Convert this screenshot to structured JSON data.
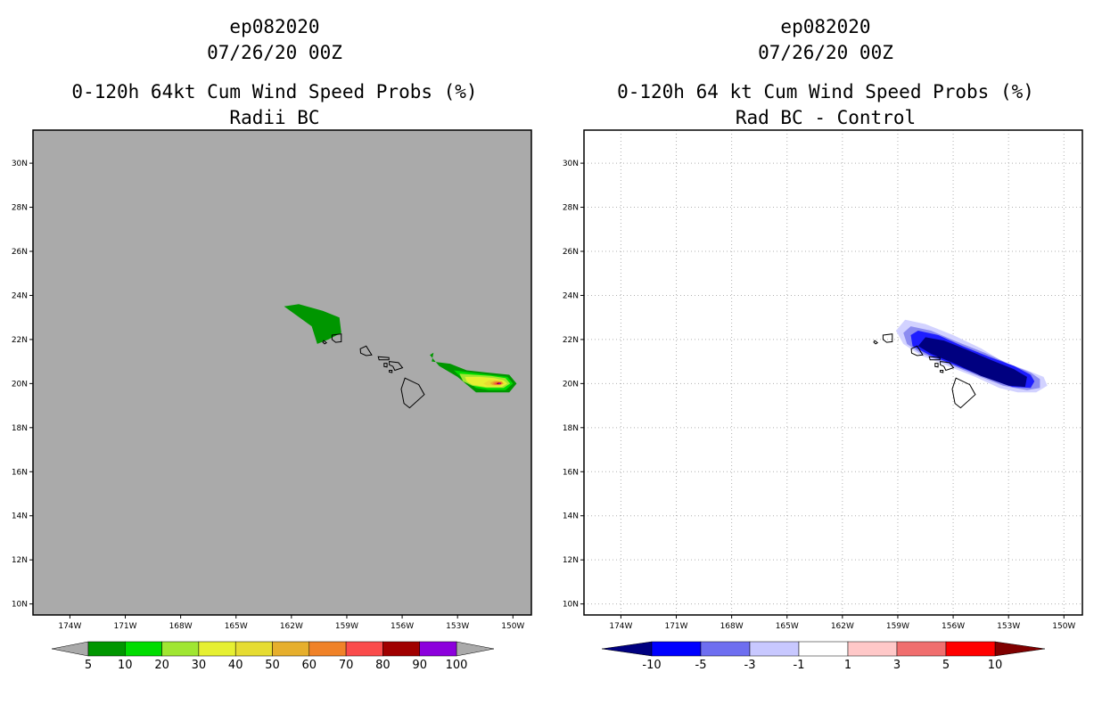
{
  "chart_data": [
    {
      "type": "heatmap",
      "storm_id": "ep082020",
      "datetime": "07/26/20 00Z",
      "title": "0-120h 64kt Cum Wind Speed Probs (%)",
      "subtitle": "Radii BC",
      "xlabel": "",
      "ylabel": "",
      "xlim": [
        -176,
        -149
      ],
      "ylim": [
        9.5,
        31.5
      ],
      "grid": false,
      "background_color": "#aaaaaa",
      "x_ticks": [
        -174,
        -171,
        -168,
        -165,
        -162,
        -159,
        -156,
        -153,
        -150
      ],
      "x_tick_labels": [
        "174W",
        "171W",
        "168W",
        "165W",
        "162W",
        "159W",
        "156W",
        "153W",
        "150W"
      ],
      "y_ticks": [
        10,
        12,
        14,
        16,
        18,
        20,
        22,
        24,
        26,
        28,
        30
      ],
      "y_tick_labels": [
        "10N",
        "12N",
        "14N",
        "16N",
        "18N",
        "20N",
        "22N",
        "24N",
        "26N",
        "28N",
        "30N"
      ],
      "colorbar": {
        "labels": [
          "5",
          "10",
          "20",
          "30",
          "40",
          "50",
          "60",
          "70",
          "80",
          "90",
          "100"
        ],
        "colors": [
          "#009600",
          "#00dc00",
          "#a0e632",
          "#e6f032",
          "#e6dc32",
          "#e6af2d",
          "#f08228",
          "#fa4b4b",
          "#a00000",
          "#8c00dc"
        ],
        "arrow_color": "#aaaaaa"
      },
      "contours": [
        {
          "level": 5,
          "color": "#009600",
          "regions": [
            [
              [
                -162.4,
                23.5
              ],
              [
                -161.6,
                23.6
              ],
              [
                -160.3,
                23.3
              ],
              [
                -159.4,
                23.0
              ],
              [
                -159.3,
                22.3
              ],
              [
                -160.0,
                22.0
              ],
              [
                -160.6,
                21.8
              ],
              [
                -160.9,
                22.6
              ]
            ],
            [
              [
                -154.4,
                21.0
              ],
              [
                -153.4,
                20.9
              ],
              [
                -152.5,
                20.6
              ],
              [
                -151.4,
                20.5
              ],
              [
                -150.2,
                20.4
              ],
              [
                -149.8,
                20.0
              ],
              [
                -150.2,
                19.6
              ],
              [
                -151.2,
                19.6
              ],
              [
                -152.0,
                19.6
              ],
              [
                -153.0,
                20.3
              ],
              [
                -154.0,
                20.8
              ],
              [
                -154.5,
                21.3
              ],
              [
                -154.3,
                21.4
              ]
            ]
          ]
        },
        {
          "level": 10,
          "color": "#00dc00",
          "regions": [
            [
              [
                -153.2,
                20.6
              ],
              [
                -152.3,
                20.5
              ],
              [
                -151.3,
                20.4
              ],
              [
                -150.3,
                20.3
              ],
              [
                -150.0,
                20.0
              ],
              [
                -150.4,
                19.7
              ],
              [
                -151.3,
                19.7
              ],
              [
                -152.0,
                19.8
              ],
              [
                -152.7,
                20.2
              ]
            ]
          ]
        },
        {
          "level": 20,
          "color": "#a0e632",
          "regions": [
            [
              [
                -152.9,
                20.45
              ],
              [
                -152.1,
                20.4
              ],
              [
                -151.2,
                20.35
              ],
              [
                -150.4,
                20.25
              ],
              [
                -150.15,
                20.0
              ],
              [
                -150.5,
                19.8
              ],
              [
                -151.4,
                19.8
              ],
              [
                -152.2,
                19.9
              ],
              [
                -152.7,
                20.1
              ]
            ]
          ]
        },
        {
          "level": 30,
          "color": "#e6f032",
          "regions": [
            [
              [
                -152.6,
                20.3
              ],
              [
                -151.8,
                20.3
              ],
              [
                -151.0,
                20.25
              ],
              [
                -150.5,
                20.15
              ],
              [
                -150.3,
                20.0
              ],
              [
                -150.6,
                19.85
              ],
              [
                -151.5,
                19.85
              ],
              [
                -152.2,
                19.95
              ],
              [
                -152.5,
                20.1
              ]
            ]
          ]
        },
        {
          "level": 40,
          "color": "#e6dc32",
          "regions": [
            [
              [
                -151.3,
                20.15
              ],
              [
                -150.7,
                20.15
              ],
              [
                -150.45,
                20.0
              ],
              [
                -150.7,
                19.9
              ],
              [
                -151.4,
                19.9
              ],
              [
                -151.6,
                20.0
              ]
            ]
          ]
        },
        {
          "level": 50,
          "color": "#e6af2d",
          "regions": [
            [
              [
                -151.0,
                20.12
              ],
              [
                -150.6,
                20.1
              ],
              [
                -150.5,
                20.0
              ],
              [
                -150.7,
                19.93
              ],
              [
                -151.1,
                19.93
              ],
              [
                -151.25,
                20.02
              ]
            ]
          ]
        },
        {
          "level": 60,
          "color": "#f08228",
          "regions": [
            [
              [
                -150.9,
                20.08
              ],
              [
                -150.6,
                20.07
              ],
              [
                -150.55,
                20.0
              ],
              [
                -150.7,
                19.95
              ],
              [
                -151.0,
                19.95
              ],
              [
                -151.1,
                20.02
              ]
            ]
          ]
        },
        {
          "level": 70,
          "color": "#fa4b4b",
          "regions": [
            [
              [
                -150.85,
                20.06
              ],
              [
                -150.65,
                20.05
              ],
              [
                -150.6,
                20.0
              ],
              [
                -150.7,
                19.96
              ],
              [
                -150.95,
                19.96
              ],
              [
                -151.0,
                20.01
              ]
            ]
          ]
        },
        {
          "level": 80,
          "color": "#a00000",
          "regions": [
            [
              [
                -150.8,
                20.04
              ],
              [
                -150.65,
                20.03
              ],
              [
                -150.65,
                19.99
              ],
              [
                -150.8,
                19.97
              ],
              [
                -150.9,
                20.0
              ]
            ]
          ]
        },
        {
          "level": 90,
          "color": "#8c00dc",
          "regions": [
            [
              [
                -150.75,
                20.03
              ],
              [
                -150.68,
                20.02
              ],
              [
                -150.7,
                19.98
              ],
              [
                -150.8,
                19.98
              ]
            ]
          ]
        }
      ]
    },
    {
      "type": "heatmap",
      "storm_id": "ep082020",
      "datetime": "07/26/20 00Z",
      "title": "0-120h 64 kt Cum Wind Speed Probs (%)",
      "subtitle": "Rad BC - Control",
      "xlabel": "",
      "ylabel": "",
      "xlim": [
        -176,
        -149
      ],
      "ylim": [
        9.5,
        31.5
      ],
      "grid": true,
      "background_color": "#ffffff",
      "x_ticks": [
        -174,
        -171,
        -168,
        -165,
        -162,
        -159,
        -156,
        -153,
        -150
      ],
      "x_tick_labels": [
        "174W",
        "171W",
        "168W",
        "165W",
        "162W",
        "159W",
        "156W",
        "153W",
        "150W"
      ],
      "y_ticks": [
        10,
        12,
        14,
        16,
        18,
        20,
        22,
        24,
        26,
        28,
        30
      ],
      "y_tick_labels": [
        "10N",
        "12N",
        "14N",
        "16N",
        "18N",
        "20N",
        "22N",
        "24N",
        "26N",
        "28N",
        "30N"
      ],
      "colorbar": {
        "labels": [
          "-10",
          "-5",
          "-3",
          "-1",
          "1",
          "3",
          "5",
          "10"
        ],
        "colors": [
          "#0000ff",
          "#6e6ef0",
          "#c8c8ff",
          "#ffffff",
          "#ffc8c8",
          "#f06e6e",
          "#ff0000"
        ],
        "left_arrow_color": "#000080",
        "right_arrow_color": "#800000"
      },
      "contours": [
        {
          "level": -1,
          "color": "#d2d2ff",
          "regions": [
            [
              [
                -159.1,
                22.4
              ],
              [
                -158.6,
                22.9
              ],
              [
                -157.5,
                22.7
              ],
              [
                -156.0,
                22.2
              ],
              [
                -154.5,
                21.6
              ],
              [
                -153.3,
                21.0
              ],
              [
                -152.0,
                20.6
              ],
              [
                -151.1,
                20.3
              ],
              [
                -150.9,
                19.9
              ],
              [
                -151.5,
                19.6
              ],
              [
                -152.5,
                19.6
              ],
              [
                -153.5,
                19.8
              ],
              [
                -154.8,
                20.3
              ],
              [
                -156.3,
                20.8
              ],
              [
                -157.8,
                21.3
              ],
              [
                -158.7,
                21.8
              ]
            ]
          ]
        },
        {
          "level": -3,
          "color": "#8c8cf0",
          "regions": [
            [
              [
                -158.7,
                22.3
              ],
              [
                -158.3,
                22.6
              ],
              [
                -157.2,
                22.4
              ],
              [
                -155.8,
                21.9
              ],
              [
                -154.3,
                21.4
              ],
              [
                -153.0,
                20.9
              ],
              [
                -151.8,
                20.5
              ],
              [
                -151.3,
                20.2
              ],
              [
                -151.3,
                19.8
              ],
              [
                -152.0,
                19.7
              ],
              [
                -153.3,
                19.9
              ],
              [
                -154.8,
                20.4
              ],
              [
                -156.3,
                20.9
              ],
              [
                -157.8,
                21.4
              ],
              [
                -158.5,
                21.8
              ]
            ]
          ]
        },
        {
          "level": -5,
          "color": "#1e1eff",
          "regions": [
            [
              [
                -158.3,
                22.2
              ],
              [
                -157.9,
                22.4
              ],
              [
                -156.8,
                22.2
              ],
              [
                -155.5,
                21.7
              ],
              [
                -154.0,
                21.2
              ],
              [
                -152.7,
                20.8
              ],
              [
                -151.8,
                20.4
              ],
              [
                -151.6,
                20.1
              ],
              [
                -151.8,
                19.8
              ],
              [
                -152.8,
                19.85
              ],
              [
                -154.3,
                20.3
              ],
              [
                -155.8,
                20.8
              ],
              [
                -157.3,
                21.3
              ],
              [
                -158.2,
                21.7
              ]
            ]
          ]
        },
        {
          "level": -10,
          "color": "#000080",
          "regions": [
            [
              [
                -157.5,
                22.1
              ],
              [
                -156.5,
                21.95
              ],
              [
                -155.3,
                21.55
              ],
              [
                -153.9,
                21.05
              ],
              [
                -152.7,
                20.65
              ],
              [
                -152.0,
                20.3
              ],
              [
                -152.1,
                19.85
              ],
              [
                -153.0,
                19.9
              ],
              [
                -154.5,
                20.35
              ],
              [
                -155.9,
                20.9
              ],
              [
                -157.2,
                21.35
              ],
              [
                -157.9,
                21.7
              ]
            ]
          ]
        }
      ]
    }
  ]
}
